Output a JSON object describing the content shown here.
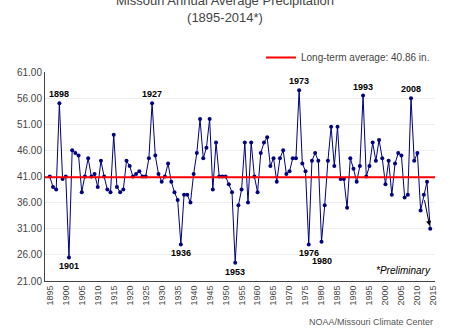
{
  "chart_data": {
    "type": "line",
    "title": "Missouri Annual Average Precipitation",
    "subtitle": "(1895-2014*)",
    "x": [
      1895,
      1896,
      1897,
      1898,
      1899,
      1900,
      1901,
      1902,
      1903,
      1904,
      1905,
      1906,
      1907,
      1908,
      1909,
      1910,
      1911,
      1912,
      1913,
      1914,
      1915,
      1916,
      1917,
      1918,
      1919,
      1920,
      1921,
      1922,
      1923,
      1924,
      1925,
      1926,
      1927,
      1928,
      1929,
      1930,
      1931,
      1932,
      1933,
      1934,
      1935,
      1936,
      1937,
      1938,
      1939,
      1940,
      1941,
      1942,
      1943,
      1944,
      1945,
      1946,
      1947,
      1948,
      1949,
      1950,
      1951,
      1952,
      1953,
      1954,
      1955,
      1956,
      1957,
      1958,
      1959,
      1960,
      1961,
      1962,
      1963,
      1964,
      1965,
      1966,
      1967,
      1968,
      1969,
      1970,
      1971,
      1972,
      1973,
      1974,
      1975,
      1976,
      1977,
      1978,
      1979,
      1980,
      1981,
      1982,
      1983,
      1984,
      1985,
      1986,
      1987,
      1988,
      1989,
      1990,
      1991,
      1992,
      1993,
      1994,
      1995,
      1996,
      1997,
      1998,
      1999,
      2000,
      2001,
      2002,
      2003,
      2004,
      2005,
      2006,
      2007,
      2008,
      2009,
      2010,
      2011,
      2012,
      2013,
      2014
    ],
    "series": [
      {
        "values": [
          41.0,
          39.0,
          38.5,
          55.0,
          40.5,
          41.0,
          25.5,
          46.0,
          45.5,
          45.0,
          38.0,
          41.0,
          44.5,
          41.0,
          41.5,
          39.0,
          44.0,
          41.0,
          38.5,
          38.0,
          49.0,
          39.0,
          38.0,
          38.5,
          44.0,
          43.0,
          41.0,
          41.5,
          42.0,
          41.0,
          41.0,
          44.5,
          55.0,
          45.0,
          41.5,
          40.0,
          41.0,
          43.5,
          40.0,
          38.0,
          36.5,
          28.0,
          37.5,
          37.5,
          36.0,
          41.5,
          45.5,
          52.0,
          44.5,
          46.5,
          52.0,
          38.5,
          47.5,
          41.0,
          41.0,
          41.0,
          39.5,
          38.0,
          24.5,
          35.5,
          38.5,
          47.5,
          36.0,
          47.5,
          41.0,
          38.0,
          45.5,
          47.5,
          48.5,
          43.0,
          44.5,
          40.0,
          44.5,
          46.0,
          41.5,
          42.0,
          44.5,
          44.5,
          57.5,
          43.5,
          42.0,
          28.0,
          44.0,
          45.5,
          44.0,
          28.5,
          35.5,
          44.0,
          50.5,
          43.0,
          50.5,
          40.5,
          40.5,
          35.0,
          44.5,
          42.5,
          40.0,
          43.0,
          56.5,
          41.0,
          43.0,
          47.5,
          44.0,
          48.0,
          44.5,
          39.5,
          44.0,
          37.5,
          43.5,
          45.5,
          45.0,
          37.0,
          37.5,
          56.0,
          44.0,
          45.5,
          34.5,
          37.5,
          40.0,
          31.0
        ],
        "color": "#000080",
        "marker": "circle"
      }
    ],
    "xlim": [
      1893.5,
      2015.5
    ],
    "xticks": [
      1895,
      1900,
      1905,
      1910,
      1915,
      1920,
      1925,
      1930,
      1935,
      1940,
      1945,
      1950,
      1955,
      1960,
      1965,
      1970,
      1975,
      1980,
      1985,
      1990,
      1995,
      2000,
      2005,
      2010,
      2015
    ],
    "ylim": [
      21.0,
      61.0
    ],
    "yticks": [
      {
        "value": 21.0,
        "label": "21.00"
      },
      {
        "value": 26.0,
        "label": "26.00"
      },
      {
        "value": 31.0,
        "label": "31.00"
      },
      {
        "value": 36.0,
        "label": "36.00"
      },
      {
        "value": 41.0,
        "label": "41.00"
      },
      {
        "value": 46.0,
        "label": "46.00"
      },
      {
        "value": 51.0,
        "label": "51.00"
      },
      {
        "value": 56.0,
        "label": "56.00"
      },
      {
        "value": 61.0,
        "label": "61.00"
      }
    ],
    "grid": true,
    "legend": "upper right",
    "reference_line": {
      "value": 40.86,
      "label": "Long-term average: 40.86 in.",
      "color": "#FF0000"
    },
    "annotations": [
      {
        "text": "1898",
        "x": 1898,
        "y": 55.0
      },
      {
        "text": "1901",
        "x": 1901,
        "y": 25.5
      },
      {
        "text": "1927",
        "x": 1927,
        "y": 55.0
      },
      {
        "text": "1936",
        "x": 1936,
        "y": 28.0
      },
      {
        "text": "1953",
        "x": 1953,
        "y": 24.5
      },
      {
        "text": "1973",
        "x": 1973,
        "y": 57.5
      },
      {
        "text": "1976",
        "x": 1976,
        "y": 28.0
      },
      {
        "text": "1980",
        "x": 1980,
        "y": 28.5
      },
      {
        "text": "1993",
        "x": 1993,
        "y": 56.5
      },
      {
        "text": "2008",
        "x": 2008,
        "y": 56.0
      }
    ],
    "note": "*Preliminary",
    "source": "NOAA/Missouri Climate Center"
  }
}
